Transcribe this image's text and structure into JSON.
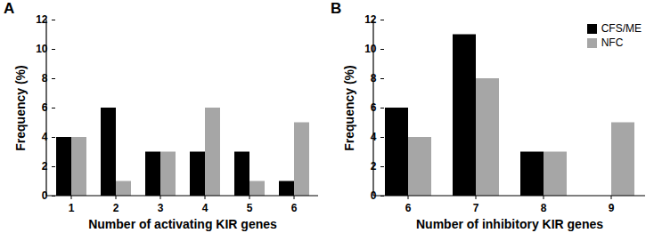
{
  "chart_data": [
    {
      "type": "bar",
      "title": "A",
      "x_label": "Number of activating KIR genes",
      "y_label": "Frequency (%)",
      "categories": [
        1,
        2,
        3,
        4,
        5,
        6
      ],
      "series": [
        {
          "name": "CFS/ME",
          "color": "#000000",
          "values": [
            4,
            6,
            3,
            3,
            3,
            1
          ]
        },
        {
          "name": "NFC",
          "color": "#a6a6a6",
          "values": [
            4,
            1,
            3,
            6,
            1,
            5
          ]
        }
      ],
      "ylim": [
        0,
        12
      ],
      "yticks": [
        0,
        2,
        4,
        6,
        8,
        10,
        12
      ]
    },
    {
      "type": "bar",
      "title": "B",
      "x_label": "Number of inhibitory KIR genes",
      "y_label": "Frequency (%)",
      "categories": [
        6,
        7,
        8,
        9
      ],
      "series": [
        {
          "name": "CFS/ME",
          "color": "#000000",
          "values": [
            6,
            11,
            3,
            0
          ]
        },
        {
          "name": "NFC",
          "color": "#a6a6a6",
          "values": [
            4,
            8,
            3,
            5
          ]
        }
      ],
      "ylim": [
        0,
        12
      ],
      "yticks": [
        0,
        2,
        4,
        6,
        8,
        10,
        12
      ],
      "legend": "top-right"
    }
  ]
}
